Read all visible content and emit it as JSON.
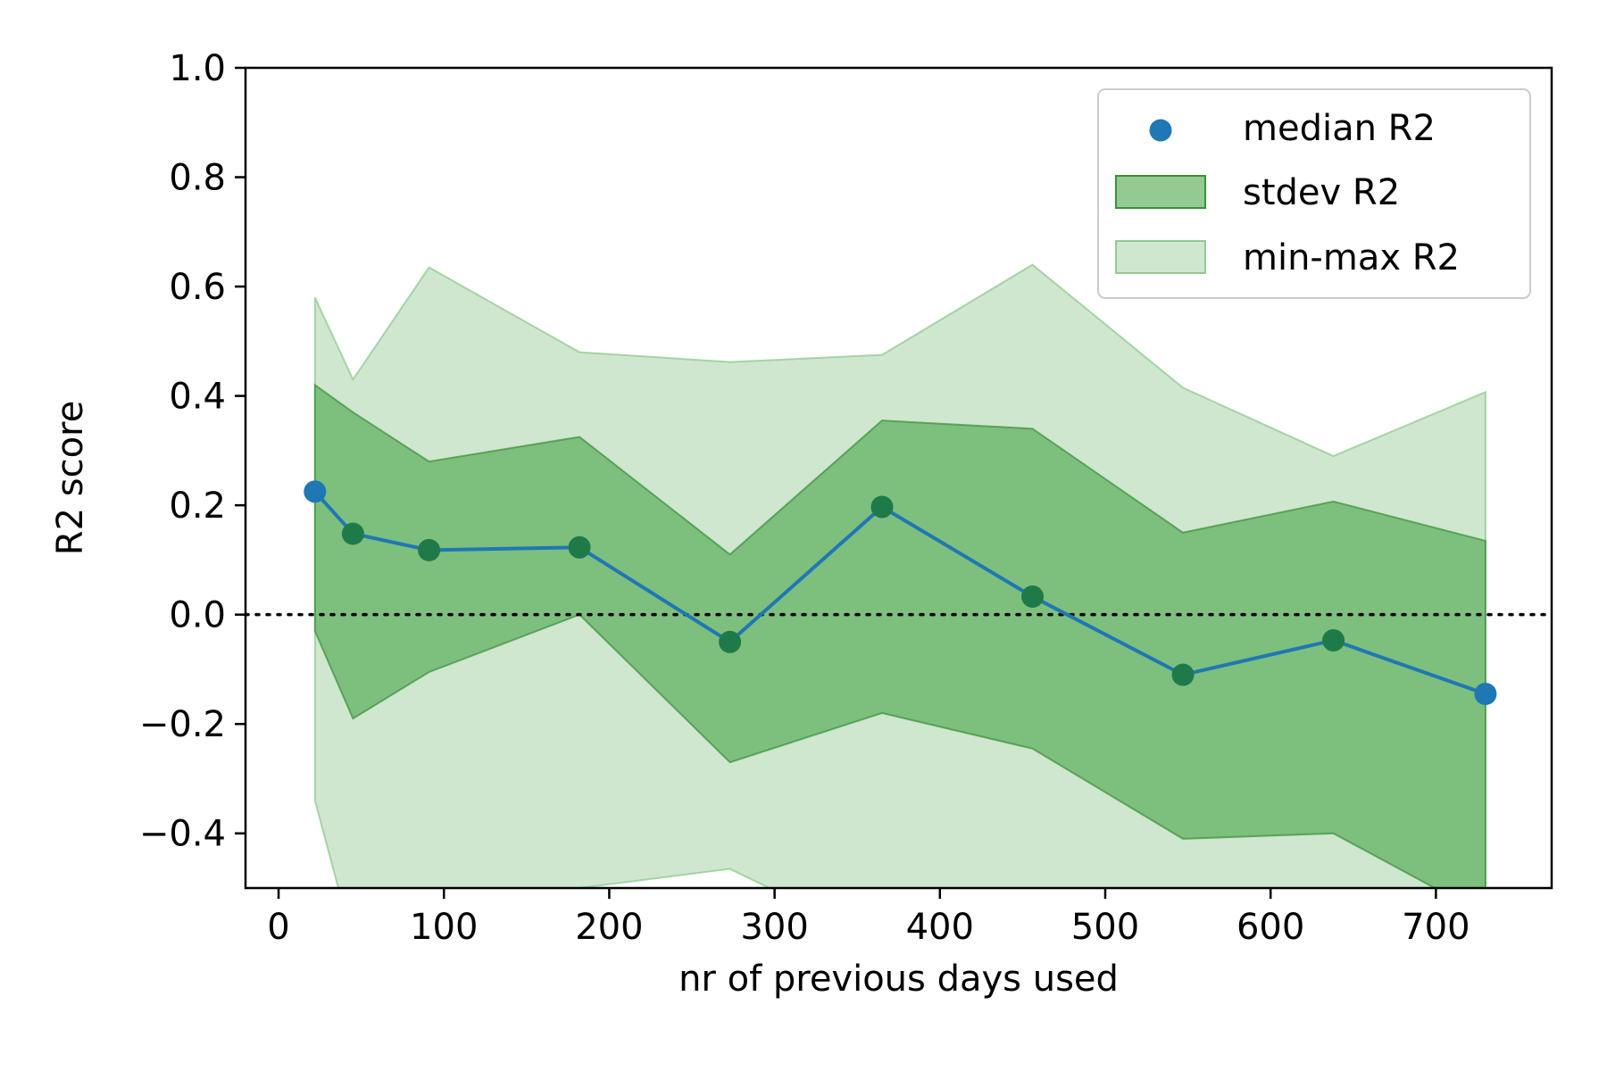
{
  "chart_data": {
    "type": "line",
    "title": "",
    "xlabel": "nr of previous days used",
    "ylabel": "R2 score",
    "xlim": [
      -20,
      770
    ],
    "ylim": [
      -0.5,
      1.0
    ],
    "xticks": [
      0,
      100,
      200,
      300,
      400,
      500,
      600,
      700
    ],
    "yticks": [
      -0.4,
      -0.2,
      0.0,
      0.2,
      0.4,
      0.6,
      0.8,
      1.0
    ],
    "ytick_labels": [
      "−0.4",
      "−0.2",
      "0.0",
      "0.2",
      "0.4",
      "0.6",
      "0.8",
      "1.0"
    ],
    "x": [
      22,
      45,
      91,
      182,
      273,
      365,
      456,
      547,
      638,
      730
    ],
    "series": [
      {
        "name": "median R2",
        "kind": "points+line",
        "values": [
          0.225,
          0.148,
          0.118,
          0.123,
          -0.05,
          0.197,
          0.033,
          -0.11,
          -0.047,
          -0.145
        ]
      },
      {
        "name": "stdev R2",
        "kind": "band",
        "upper": [
          0.42,
          0.37,
          0.28,
          0.325,
          0.11,
          0.355,
          0.34,
          0.15,
          0.207,
          0.135
        ],
        "lower": [
          -0.03,
          -0.19,
          -0.105,
          0.0,
          -0.27,
          -0.18,
          -0.245,
          -0.41,
          -0.4,
          -0.55
        ]
      },
      {
        "name": "min-max R2",
        "kind": "band",
        "upper": [
          0.58,
          0.43,
          0.635,
          0.48,
          0.462,
          0.475,
          0.64,
          0.415,
          0.29,
          0.407
        ],
        "lower": [
          -0.34,
          -0.6,
          -0.6,
          -0.5,
          -0.465,
          -0.6,
          -0.6,
          -0.6,
          -0.6,
          -0.6
        ]
      }
    ],
    "reference_line": {
      "y": 0.0,
      "style": "dotted"
    },
    "legend": {
      "position": "top-right"
    },
    "grid": false,
    "colors": {
      "median": "#1f77b4",
      "stdev_fill": "#3a9e3a",
      "minmax_fill": "#9fd09f",
      "point_overlap": "#1f7a4a"
    }
  }
}
